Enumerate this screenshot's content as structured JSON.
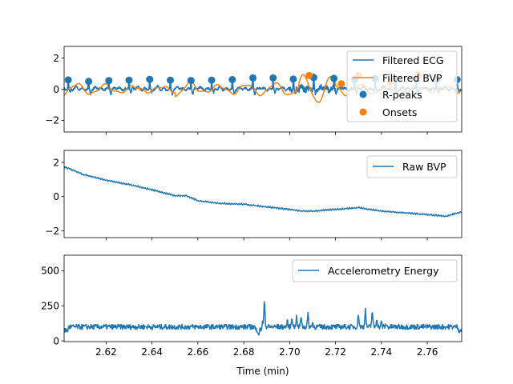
{
  "chart_data": [
    {
      "type": "line",
      "panel": "filtered",
      "xlim": [
        2.6017,
        2.775
      ],
      "ylim": [
        -2.75,
        2.75
      ],
      "yticks": [
        -2,
        0,
        2
      ],
      "legend_position": "top-right",
      "series": [
        {
          "name": "Filtered ECG",
          "color": "#1f77b4",
          "kind": "line"
        },
        {
          "name": "Filtered BVP",
          "color": "#ff7f0e",
          "kind": "line"
        },
        {
          "name": "R-peaks",
          "color": "#1f77b4",
          "kind": "stem",
          "x": [
            2.6035,
            2.6124,
            2.6212,
            2.63,
            2.639,
            2.648,
            2.657,
            2.666,
            2.675,
            2.684,
            2.6928,
            2.7016,
            2.7105,
            2.7193,
            2.7283,
            2.7373,
            2.7462,
            2.7552,
            2.764,
            2.773
          ],
          "y": [
            0.6,
            0.5,
            0.55,
            0.58,
            0.63,
            0.58,
            0.56,
            0.58,
            0.62,
            0.72,
            0.72,
            0.65,
            0.75,
            0.7,
            0.62,
            0.68,
            0.66,
            0.68,
            0.64,
            0.62
          ]
        },
        {
          "name": "Onsets",
          "color": "#ff7f0e",
          "kind": "points",
          "x": [
            2.7085,
            2.7225,
            2.73,
            2.744,
            2.756
          ],
          "y": [
            0.88,
            0.35,
            0.9,
            0.48,
            0.92
          ]
        }
      ]
    },
    {
      "type": "line",
      "panel": "raw",
      "xlim": [
        2.6017,
        2.775
      ],
      "ylim": [
        -2.4,
        2.7
      ],
      "yticks": [
        -2,
        0,
        2
      ],
      "legend_position": "top-right",
      "series": [
        {
          "name": "Raw BVP",
          "color": "#1f77b4",
          "x": [
            2.6017,
            2.61,
            2.62,
            2.63,
            2.64,
            2.65,
            2.655,
            2.66,
            2.67,
            2.68,
            2.69,
            2.7,
            2.705,
            2.71,
            2.72,
            2.73,
            2.74,
            2.75,
            2.76,
            2.768,
            2.775
          ],
          "y": [
            1.75,
            1.3,
            0.95,
            0.7,
            0.4,
            0.05,
            0.05,
            -0.25,
            -0.4,
            -0.45,
            -0.6,
            -0.75,
            -0.85,
            -0.85,
            -0.75,
            -0.65,
            -0.85,
            -0.95,
            -1.05,
            -1.15,
            -0.9
          ]
        }
      ]
    },
    {
      "type": "line",
      "panel": "accel",
      "xlabel": "Time (min)",
      "xlim": [
        2.6017,
        2.775
      ],
      "ylim": [
        -5,
        610
      ],
      "yticks": [
        0,
        250,
        500
      ],
      "xticks": [
        2.62,
        2.64,
        2.66,
        2.68,
        2.7,
        2.72,
        2.74,
        2.76
      ],
      "legend_position": "top-right",
      "series": [
        {
          "name": "Accelerometry Energy",
          "color": "#1f77b4",
          "baseline": 100,
          "spikes": [
            {
              "x": 2.689,
              "y": 290
            },
            {
              "x": 2.6882,
              "y": 150
            },
            {
              "x": 2.6865,
              "y": 70
            },
            {
              "x": 2.699,
              "y": 135
            },
            {
              "x": 2.701,
              "y": 170
            },
            {
              "x": 2.703,
              "y": 165
            },
            {
              "x": 2.705,
              "y": 180
            },
            {
              "x": 2.708,
              "y": 185
            },
            {
              "x": 2.71,
              "y": 130
            },
            {
              "x": 2.73,
              "y": 190
            },
            {
              "x": 2.733,
              "y": 220
            },
            {
              "x": 2.736,
              "y": 210
            },
            {
              "x": 2.738,
              "y": 160
            },
            {
              "x": 2.74,
              "y": 130
            },
            {
              "x": 2.742,
              "y": 120
            }
          ]
        }
      ]
    }
  ]
}
